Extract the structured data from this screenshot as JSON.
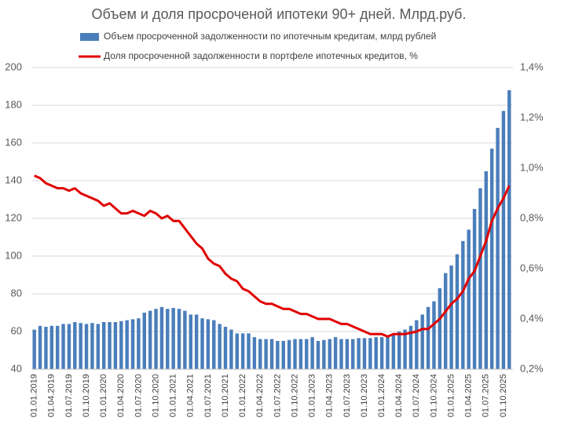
{
  "chart_data": {
    "type": "bar_line",
    "title": "Объем и доля просроченой ипотеки 90+ дней. Млрд.руб.",
    "categories": [
      "01.01.2019",
      null,
      null,
      "01.04.2019",
      null,
      null,
      "01.07.2019",
      null,
      null,
      "01.10.2019",
      null,
      null,
      "01.01.2020",
      null,
      null,
      "01.04.2020",
      null,
      null,
      "01.07.2020",
      null,
      null,
      "01.10.2020",
      null,
      null,
      "01.01.2021",
      null,
      null,
      "01.04.2021",
      null,
      null,
      "01.07.2021",
      null,
      null,
      "01.10.2021",
      null,
      null,
      "01.01.2022",
      null,
      null,
      "01.04.2022",
      null,
      null,
      "01.07.2022",
      null,
      null,
      "01.10.2022",
      null,
      null,
      "01.01.2023",
      null,
      null,
      "01.04.2023",
      null,
      null,
      "01.07.2023",
      null,
      null,
      "01.10.2023",
      null,
      null,
      "01.01.2024",
      null,
      null,
      "01.04.2024",
      null,
      null,
      "01.07.2024",
      null,
      null,
      "01.10.2024",
      null,
      null,
      "01.01.2025",
      null,
      null,
      "01.04.2025",
      null,
      null,
      "01.07.2025",
      null,
      null,
      "01.10.2025",
      null
    ],
    "series": [
      {
        "name": "Объем просроченной задолженности по ипотечным кредитам, млрд рублей",
        "color": "#4a7ebb",
        "kind": "bar",
        "values": [
          61,
          63,
          62.5,
          63,
          63,
          64,
          64,
          65,
          64.5,
          64,
          64.5,
          64,
          65,
          65,
          65,
          65.5,
          66,
          66.5,
          67,
          70,
          71,
          72,
          73,
          72,
          72.5,
          72,
          71,
          69,
          69,
          67,
          66.5,
          66,
          64,
          62.5,
          61,
          59,
          59,
          59,
          57,
          56,
          56,
          56,
          55,
          55,
          55.5,
          56,
          56,
          56,
          57,
          55,
          55.5,
          56,
          57,
          56,
          56,
          56,
          56.5,
          56.5,
          56.5,
          57,
          57,
          58,
          59,
          60,
          61,
          63,
          66,
          69,
          73,
          76,
          83,
          91,
          95,
          101,
          108,
          114,
          125,
          136,
          145,
          157,
          168,
          177,
          188
        ]
      },
      {
        "name": "Доля просроченной задолженности в портфеле ипотечных кредитов, %",
        "color": "#e00000",
        "kind": "line",
        "axis": "y2",
        "values": [
          0.97,
          0.96,
          0.94,
          0.93,
          0.92,
          0.92,
          0.91,
          0.92,
          0.9,
          0.89,
          0.88,
          0.87,
          0.85,
          0.86,
          0.84,
          0.82,
          0.82,
          0.83,
          0.82,
          0.81,
          0.83,
          0.82,
          0.8,
          0.81,
          0.79,
          0.79,
          0.76,
          0.73,
          0.7,
          0.68,
          0.64,
          0.62,
          0.61,
          0.58,
          0.56,
          0.55,
          0.52,
          0.51,
          0.49,
          0.47,
          0.46,
          0.46,
          0.45,
          0.44,
          0.44,
          0.43,
          0.42,
          0.42,
          0.41,
          0.4,
          0.4,
          0.4,
          0.39,
          0.38,
          0.38,
          0.37,
          0.36,
          0.35,
          0.34,
          0.34,
          0.34,
          0.33,
          0.34,
          0.34,
          0.34,
          0.345,
          0.35,
          0.36,
          0.36,
          0.38,
          0.4,
          0.43,
          0.46,
          0.48,
          0.51,
          0.56,
          0.59,
          0.65,
          0.71,
          0.79,
          0.84,
          0.88,
          0.93
        ]
      }
    ],
    "ylim": [
      40,
      200
    ],
    "yticks": [
      40,
      60,
      80,
      100,
      120,
      140,
      160,
      180,
      200
    ],
    "y2lim": [
      0.2,
      1.4
    ],
    "y2ticks": [
      {
        "value": 0.2,
        "label": "0,2%"
      },
      {
        "value": 0.4,
        "label": "0,4%"
      },
      {
        "value": 0.6,
        "label": "0,6%"
      },
      {
        "value": 0.8,
        "label": "0,8%"
      },
      {
        "value": 1.0,
        "label": "1,0%"
      },
      {
        "value": 1.2,
        "label": "1,2%"
      },
      {
        "value": 1.4,
        "label": "1,4%"
      }
    ],
    "grid": true,
    "legend": "top"
  }
}
